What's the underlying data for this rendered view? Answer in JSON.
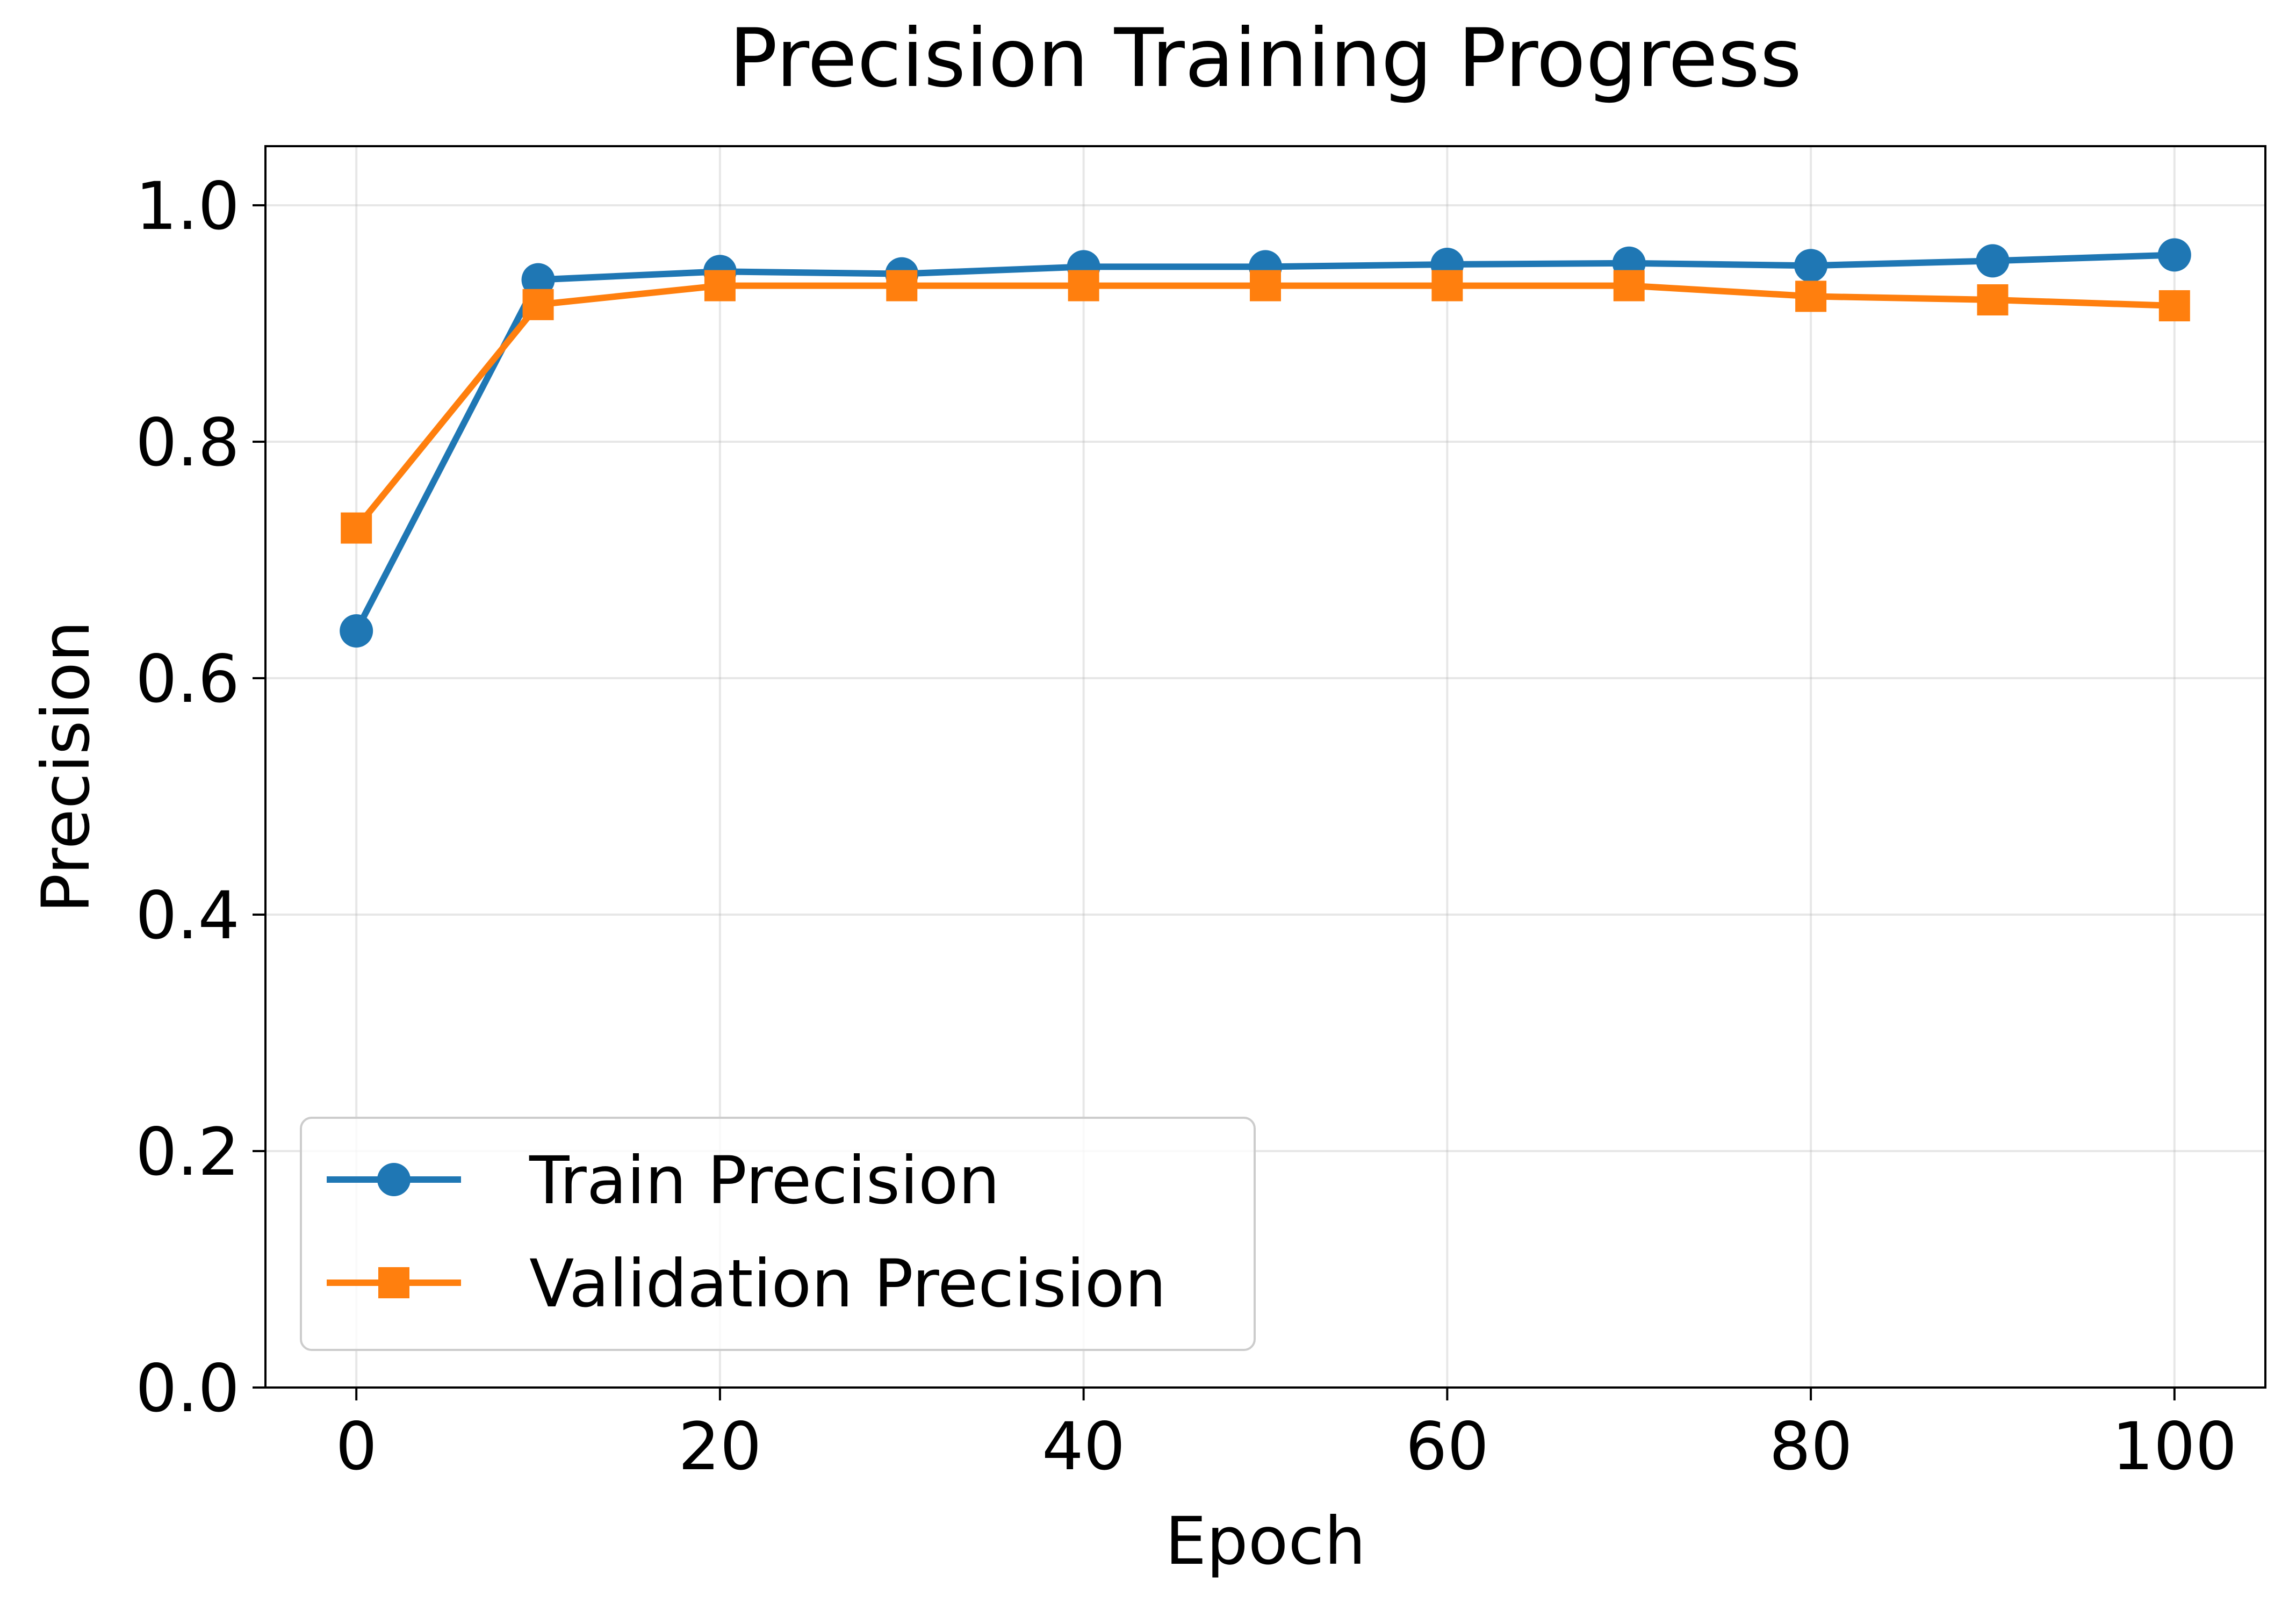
{
  "chart_data": {
    "type": "line",
    "title": "Precision Training Progress",
    "xlabel": "Epoch",
    "ylabel": "Precision",
    "xlim": [
      -5,
      105
    ],
    "ylim": [
      0.0,
      1.05
    ],
    "xticks": [
      0,
      20,
      40,
      60,
      80,
      100
    ],
    "xtick_labels": [
      "0",
      "20",
      "40",
      "60",
      "80",
      "100"
    ],
    "yticks": [
      0.0,
      0.2,
      0.4,
      0.6,
      0.8,
      1.0
    ],
    "ytick_labels": [
      "0.0",
      "0.2",
      "0.4",
      "0.6",
      "0.8",
      "1.0"
    ],
    "grid": true,
    "legend_position": "lower-left",
    "x": [
      0,
      10,
      20,
      30,
      40,
      50,
      60,
      70,
      80,
      90,
      100
    ],
    "series": [
      {
        "name": "Train Precision",
        "color": "#1f77b4",
        "marker": "circle",
        "values": [
          0.64,
          0.937,
          0.944,
          0.942,
          0.948,
          0.948,
          0.95,
          0.951,
          0.949,
          0.953,
          0.958
        ]
      },
      {
        "name": "Validation Precision",
        "color": "#ff7f0e",
        "marker": "square",
        "values": [
          0.727,
          0.916,
          0.932,
          0.932,
          0.932,
          0.932,
          0.932,
          0.932,
          0.923,
          0.92,
          0.915
        ]
      }
    ]
  }
}
